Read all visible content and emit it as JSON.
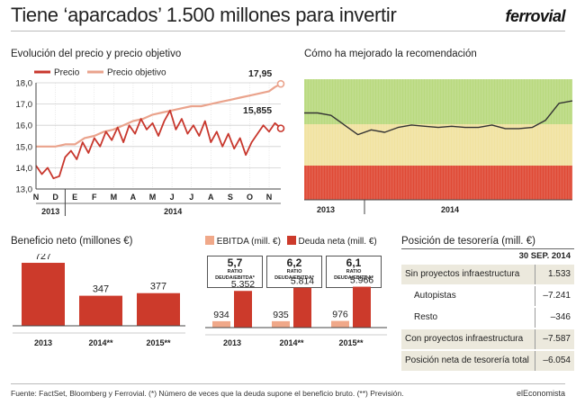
{
  "header": {
    "title": "Tiene ‘aparcados’ 1.500 millones para invertir",
    "brand": "ferrovial"
  },
  "sections": {
    "price_title": "Evolución del precio y precio objetivo",
    "rec_title": "Cómo ha mejorado la recomendación",
    "profit_title": "Beneficio neto (millones €)",
    "treasury_title": "Posición de tesorería (mill. €)"
  },
  "colors": {
    "price": "#c8372d",
    "target": "#eaa38c",
    "ebitda": "#f0a889",
    "debt": "#cc3a2b",
    "profit_bar": "#cc3a2b",
    "rec_green": "#b9d97f",
    "rec_yellow": "#f1e2a0",
    "rec_red": "#df4a35",
    "table_shade": "#ece9dd"
  },
  "chart_data": [
    {
      "type": "line",
      "legend": [
        "Precio",
        "Precio objetivo"
      ],
      "ylim": [
        13.0,
        18.0
      ],
      "yticks": [
        "18,0",
        "17,0",
        "16,0",
        "15,0",
        "14,0",
        "13,0"
      ],
      "month_labels": [
        "N",
        "D",
        "E",
        "F",
        "M",
        "A",
        "M",
        "J",
        "J",
        "A",
        "S",
        "O",
        "N"
      ],
      "year_labels": [
        "2013",
        "2014"
      ],
      "annotations": [
        "17,95",
        "15,855"
      ],
      "series": [
        {
          "name": "Precio",
          "x": [
            0,
            0.3,
            0.6,
            0.9,
            1.2,
            1.5,
            1.8,
            2.1,
            2.4,
            2.7,
            3.0,
            3.3,
            3.6,
            3.9,
            4.2,
            4.5,
            4.8,
            5.1,
            5.4,
            5.7,
            6.0,
            6.3,
            6.6,
            6.9,
            7.2,
            7.5,
            7.8,
            8.1,
            8.4,
            8.7,
            9.0,
            9.3,
            9.6,
            9.9,
            10.2,
            10.5,
            10.8,
            11.1,
            11.4,
            11.7,
            12.0,
            12.3,
            12.6
          ],
          "values": [
            14.1,
            13.7,
            14.0,
            13.5,
            13.6,
            14.5,
            14.8,
            14.4,
            15.2,
            14.7,
            15.4,
            15.0,
            15.7,
            15.3,
            15.9,
            15.2,
            16.0,
            15.6,
            16.3,
            15.8,
            16.1,
            15.5,
            16.2,
            16.7,
            15.8,
            16.3,
            15.6,
            16.0,
            15.5,
            16.2,
            15.2,
            15.7,
            15.0,
            15.6,
            14.9,
            15.4,
            14.6,
            15.2,
            15.6,
            16.0,
            15.7,
            16.1,
            15.855
          ]
        },
        {
          "name": "Precio objetivo",
          "x": [
            0,
            1.0,
            1.5,
            2.0,
            2.5,
            3.0,
            3.5,
            4.0,
            4.5,
            5.0,
            5.5,
            6.0,
            6.5,
            7.0,
            7.5,
            8.0,
            8.5,
            9.0,
            9.5,
            10.0,
            10.5,
            11.0,
            11.5,
            12.0,
            12.3,
            12.6
          ],
          "values": [
            15.0,
            15.0,
            15.1,
            15.1,
            15.4,
            15.5,
            15.7,
            15.8,
            16.0,
            16.2,
            16.3,
            16.5,
            16.6,
            16.7,
            16.8,
            16.9,
            16.9,
            17.0,
            17.1,
            17.2,
            17.3,
            17.4,
            17.5,
            17.6,
            17.8,
            17.95
          ]
        }
      ]
    },
    {
      "type": "line",
      "title": "Cómo ha mejorado la recomendación",
      "year_labels": [
        "2013",
        "2014"
      ],
      "series": [
        {
          "name": "Recomendación",
          "x": [
            0,
            0.05,
            0.1,
            0.15,
            0.2,
            0.25,
            0.3,
            0.35,
            0.4,
            0.45,
            0.5,
            0.55,
            0.6,
            0.65,
            0.7,
            0.75,
            0.8,
            0.85,
            0.9,
            0.95,
            1.0
          ],
          "values": [
            0.72,
            0.72,
            0.7,
            0.62,
            0.54,
            0.58,
            0.56,
            0.6,
            0.62,
            0.61,
            0.6,
            0.61,
            0.6,
            0.6,
            0.62,
            0.59,
            0.59,
            0.6,
            0.66,
            0.8,
            0.82
          ]
        }
      ]
    },
    {
      "type": "bar",
      "title": "Beneficio neto (millones €)",
      "categories": [
        "2013",
        "2014**",
        "2015**"
      ],
      "values": [
        727,
        347,
        377
      ],
      "ylim": [
        0,
        800
      ]
    },
    {
      "type": "bar",
      "legend": [
        "EBITDA (mill. €)",
        "Deuda neta (mill. €)"
      ],
      "categories": [
        "2013",
        "2014**",
        "2015**"
      ],
      "series": [
        {
          "name": "EBITDA (mill. €)",
          "values": [
            934,
            935,
            976
          ],
          "labels": [
            "934",
            "935",
            "976"
          ]
        },
        {
          "name": "Deuda neta (mill. €)",
          "values": [
            5352,
            5814,
            5966
          ],
          "labels": [
            "5.352",
            "5.814",
            "5.966"
          ]
        }
      ],
      "ratios": [
        "5,7",
        "6,2",
        "6,1"
      ],
      "ratio_label": "RATIO DEUDA/EBITDA*",
      "ylim": [
        0,
        6500
      ]
    },
    {
      "type": "table",
      "header": "30 SEP. 2014",
      "rows": [
        {
          "label": "Sin proyectos infraestructura",
          "value": "1.533",
          "shaded": true,
          "indent": false
        },
        {
          "label": "Autopistas",
          "value": "–7.241",
          "shaded": false,
          "indent": true
        },
        {
          "label": "Resto",
          "value": "–346",
          "shaded": false,
          "indent": true
        },
        {
          "label": "Con proyectos infraestructura",
          "value": "–7.587",
          "shaded": true,
          "indent": false
        },
        {
          "label": "Posición neta de tesorería total",
          "value": "–6.054",
          "shaded": true,
          "indent": false
        }
      ]
    }
  ],
  "footer": {
    "note": "Fuente: FactSet, Bloomberg y Ferrovial. (*) Número de veces que la deuda supone el beneficio bruto. (**) Previsión.",
    "source": "elEconomista"
  }
}
